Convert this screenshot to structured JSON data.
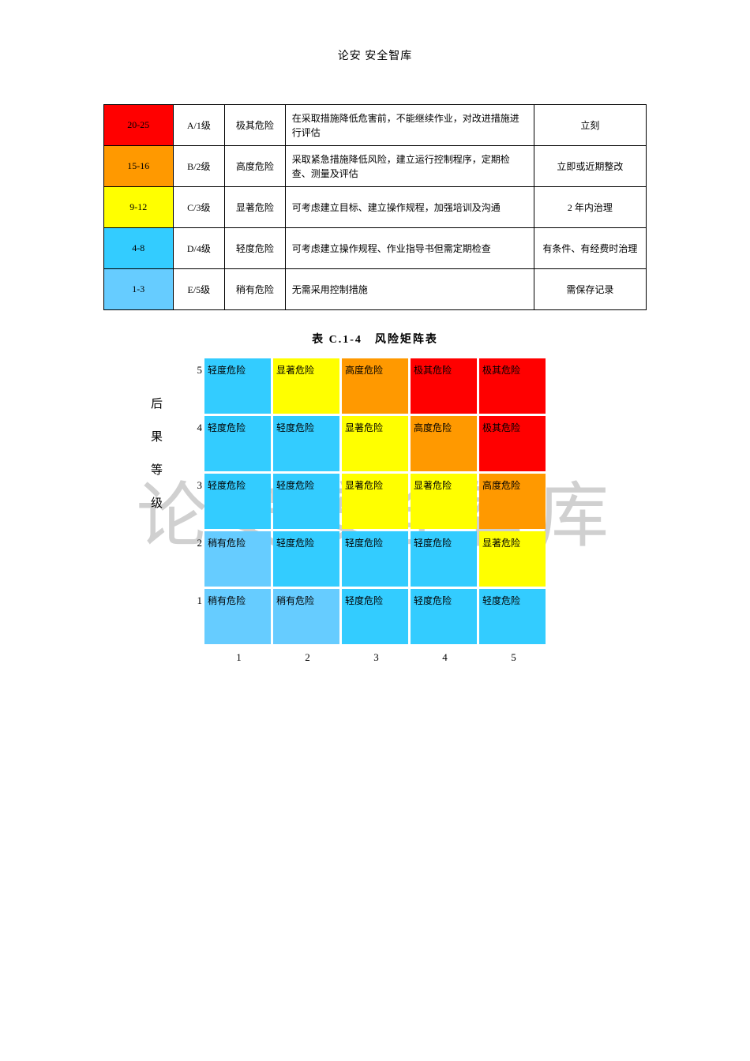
{
  "header": "论安 安全智库",
  "watermark": "论安 安全智库",
  "colors": {
    "red": "#ff0000",
    "orange": "#ff9900",
    "yellow": "#ffff00",
    "blue_light": "#33ccff",
    "blue_lighter": "#66ccff",
    "border": "#000000",
    "background": "#ffffff",
    "text": "#000000"
  },
  "risk_table": {
    "rows": [
      {
        "range": "20-25",
        "grade": "A/1级",
        "level": "极其危险",
        "desc": "在采取措施降低危害前，不能继续作业，对改进措施进行评估",
        "action": "立刻",
        "color": "#ff0000"
      },
      {
        "range": "15-16",
        "grade": "B/2级",
        "level": "高度危险",
        "desc": "采取紧急措施降低风险，建立运行控制程序，定期检查、测量及评估",
        "action": "立即或近期整改",
        "color": "#ff9900"
      },
      {
        "range": "9-12",
        "grade": "C/3级",
        "level": "显著危险",
        "desc": "可考虑建立目标、建立操作规程，加强培训及沟通",
        "action": "2 年内治理",
        "color": "#ffff00"
      },
      {
        "range": "4-8",
        "grade": "D/4级",
        "level": "轻度危险",
        "desc": "可考虑建立操作规程、作业指导书但需定期检查",
        "action": "有条件、有经费时治理",
        "color": "#33ccff"
      },
      {
        "range": "1-3",
        "grade": "E/5级",
        "level": "稍有危险",
        "desc": "无需采用控制措施",
        "action": "需保存记录",
        "color": "#66ccff"
      }
    ]
  },
  "matrix": {
    "title": "表 C.1-4　风险矩阵表",
    "y_axis_label": "后果等级",
    "y_labels": [
      "5",
      "4",
      "3",
      "2",
      "1"
    ],
    "x_labels": [
      "1",
      "2",
      "3",
      "4",
      "5"
    ],
    "cell_size": {
      "width": 84,
      "height": 70
    },
    "spacing": 3,
    "cells": [
      [
        {
          "text": "轻度危险",
          "color": "#33ccff"
        },
        {
          "text": "显著危险",
          "color": "#ffff00"
        },
        {
          "text": "高度危险",
          "color": "#ff9900"
        },
        {
          "text": "极其危险",
          "color": "#ff0000"
        },
        {
          "text": "极其危险",
          "color": "#ff0000"
        }
      ],
      [
        {
          "text": "轻度危险",
          "color": "#33ccff"
        },
        {
          "text": "轻度危险",
          "color": "#33ccff"
        },
        {
          "text": "显著危险",
          "color": "#ffff00"
        },
        {
          "text": "高度危险",
          "color": "#ff9900"
        },
        {
          "text": "极其危险",
          "color": "#ff0000"
        }
      ],
      [
        {
          "text": "轻度危险",
          "color": "#33ccff"
        },
        {
          "text": "轻度危险",
          "color": "#33ccff"
        },
        {
          "text": "显著危险",
          "color": "#ffff00"
        },
        {
          "text": "显著危险",
          "color": "#ffff00"
        },
        {
          "text": "高度危险",
          "color": "#ff9900"
        }
      ],
      [
        {
          "text": "稍有危险",
          "color": "#66ccff"
        },
        {
          "text": "轻度危险",
          "color": "#33ccff"
        },
        {
          "text": "轻度危险",
          "color": "#33ccff"
        },
        {
          "text": "轻度危险",
          "color": "#33ccff"
        },
        {
          "text": "显著危险",
          "color": "#ffff00"
        }
      ],
      [
        {
          "text": "稍有危险",
          "color": "#66ccff"
        },
        {
          "text": "稍有危险",
          "color": "#66ccff"
        },
        {
          "text": "轻度危险",
          "color": "#33ccff"
        },
        {
          "text": "轻度危险",
          "color": "#33ccff"
        },
        {
          "text": "轻度危险",
          "color": "#33ccff"
        }
      ]
    ]
  }
}
